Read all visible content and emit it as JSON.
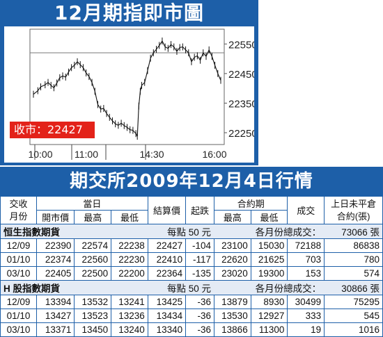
{
  "chart_data": {
    "type": "line",
    "title": "12月期指即市圖",
    "x_ticks": [
      "10:00",
      "11:00",
      "14:30",
      "16:00"
    ],
    "y_ticks": [
      22550,
      22450,
      22350,
      22250
    ],
    "ylim": [
      22210,
      22600
    ],
    "reference_line": 22520,
    "close_label": "收市：22427",
    "series": [
      {
        "points": [
          [
            0,
            22380
          ],
          [
            3,
            22392
          ],
          [
            5,
            22405
          ],
          [
            8,
            22412
          ],
          [
            10,
            22420
          ],
          [
            12,
            22410
          ],
          [
            14,
            22402
          ],
          [
            16,
            22418
          ],
          [
            18,
            22436
          ],
          [
            20,
            22442
          ],
          [
            22,
            22438
          ],
          [
            24,
            22455
          ],
          [
            26,
            22470
          ],
          [
            28,
            22478
          ],
          [
            30,
            22490
          ],
          [
            32,
            22480
          ],
          [
            34,
            22470
          ],
          [
            36,
            22452
          ],
          [
            38,
            22440
          ],
          [
            40,
            22420
          ],
          [
            42,
            22390
          ],
          [
            44,
            22345
          ],
          [
            46,
            22330
          ],
          [
            48,
            22332
          ],
          [
            50,
            22315
          ],
          [
            52,
            22302
          ],
          [
            54,
            22290
          ],
          [
            56,
            22280
          ],
          [
            58,
            22275
          ],
          [
            60,
            22282
          ],
          [
            62,
            22274
          ],
          [
            64,
            22268
          ],
          [
            66,
            22260
          ],
          [
            68,
            22258
          ],
          [
            70,
            22247
          ],
          [
            71,
            22238
          ],
          [
            72,
            22340
          ],
          [
            73,
            22390
          ],
          [
            74,
            22410
          ],
          [
            76,
            22420
          ],
          [
            78,
            22460
          ],
          [
            80,
            22502
          ],
          [
            82,
            22520
          ],
          [
            84,
            22532
          ],
          [
            86,
            22545
          ],
          [
            88,
            22560
          ],
          [
            90,
            22540
          ],
          [
            92,
            22535
          ],
          [
            94,
            22548
          ],
          [
            96,
            22540
          ],
          [
            98,
            22525
          ],
          [
            100,
            22538
          ],
          [
            102,
            22540
          ],
          [
            104,
            22530
          ],
          [
            106,
            22520
          ],
          [
            108,
            22490
          ],
          [
            110,
            22505
          ],
          [
            112,
            22510
          ],
          [
            114,
            22495
          ],
          [
            116,
            22520
          ],
          [
            118,
            22508
          ],
          [
            120,
            22530
          ],
          [
            122,
            22508
          ],
          [
            124,
            22478
          ],
          [
            126,
            22450
          ],
          [
            128,
            22427
          ]
        ]
      }
    ]
  },
  "table": {
    "title": "期交所2009年12月4日行情",
    "header": {
      "trade_month": "交收\n月份",
      "day": "當日",
      "open": "開市價",
      "high": "最高",
      "low": "最低",
      "settle": "結算價",
      "change": "起跌",
      "contract_period": "合約期",
      "cp_high": "最高",
      "cp_low": "最低",
      "volume": "成交",
      "oi": "上日未平倉\n合約(張)"
    },
    "groups": [
      {
        "name": "恒生指數期貨",
        "point_value": "每點 50 元",
        "total_label": "各月份總成交：",
        "total": "73066 張",
        "rows": [
          [
            "12/09",
            "22390",
            "22574",
            "22238",
            "22427",
            "-104",
            "23100",
            "15030",
            "72188",
            "86838"
          ],
          [
            "01/10",
            "22374",
            "22560",
            "22230",
            "22410",
            "-117",
            "22620",
            "21625",
            "703",
            "780"
          ],
          [
            "03/10",
            "22405",
            "22500",
            "22200",
            "22364",
            "-135",
            "23020",
            "19300",
            "153",
            "574"
          ]
        ]
      },
      {
        "name": "H 股指數期貨",
        "point_value": "每點 50 元",
        "total_label": "各月份總成交：",
        "total": "30866 張",
        "rows": [
          [
            "12/09",
            "13394",
            "13532",
            "13241",
            "13425",
            "-36",
            "13879",
            "8930",
            "30499",
            "75295"
          ],
          [
            "01/10",
            "13427",
            "13523",
            "13236",
            "13434",
            "-36",
            "13530",
            "12927",
            "333",
            "545"
          ],
          [
            "03/10",
            "13371",
            "13450",
            "13240",
            "13340",
            "-36",
            "13866",
            "11300",
            "19",
            "1016"
          ]
        ]
      }
    ]
  },
  "colors": {
    "panel_blue": "#1d5fa8",
    "close_red": "#e32219",
    "row_tint": "#e4ebf5"
  }
}
